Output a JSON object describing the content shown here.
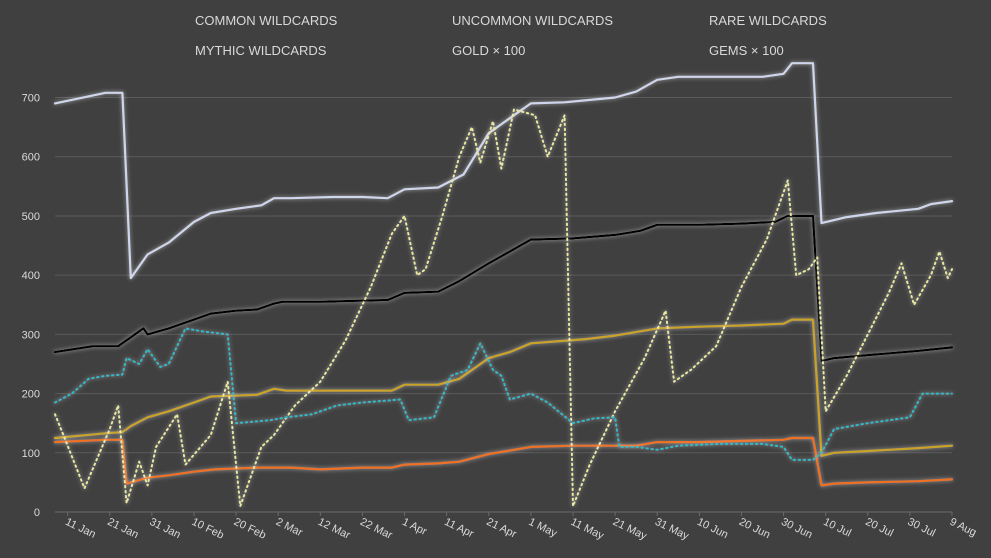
{
  "chart_data": {
    "type": "line",
    "title": "",
    "xlabel": "",
    "ylabel": "",
    "ylim": [
      0,
      760
    ],
    "grid": "horizontal",
    "legend_position": "top",
    "xlim": [
      "2019-01-08",
      "2019-08-09"
    ],
    "y_ticks": [
      0,
      100,
      200,
      300,
      400,
      500,
      600,
      700
    ],
    "x_ticks": [
      {
        "date": "2019-01-11",
        "label": "11 Jan"
      },
      {
        "date": "2019-01-21",
        "label": "21 Jan"
      },
      {
        "date": "2019-01-31",
        "label": "31 Jan"
      },
      {
        "date": "2019-02-10",
        "label": "10 Feb"
      },
      {
        "date": "2019-02-20",
        "label": "20 Feb"
      },
      {
        "date": "2019-03-02",
        "label": "2 Mar"
      },
      {
        "date": "2019-03-12",
        "label": "12 Mar"
      },
      {
        "date": "2019-03-22",
        "label": "22 Mar"
      },
      {
        "date": "2019-04-01",
        "label": "1 Apr"
      },
      {
        "date": "2019-04-11",
        "label": "11 Apr"
      },
      {
        "date": "2019-04-21",
        "label": "21 Apr"
      },
      {
        "date": "2019-05-01",
        "label": "1 May"
      },
      {
        "date": "2019-05-11",
        "label": "11 May"
      },
      {
        "date": "2019-05-21",
        "label": "21 May"
      },
      {
        "date": "2019-05-31",
        "label": "31 May"
      },
      {
        "date": "2019-06-10",
        "label": "10 Jun"
      },
      {
        "date": "2019-06-20",
        "label": "20 Jun"
      },
      {
        "date": "2019-06-30",
        "label": "30 Jun"
      },
      {
        "date": "2019-07-10",
        "label": "10 Jul"
      },
      {
        "date": "2019-07-20",
        "label": "20 Jul"
      },
      {
        "date": "2019-07-30",
        "label": "30 Jul"
      },
      {
        "date": "2019-08-09",
        "label": "9 Aug"
      }
    ],
    "series": [
      {
        "name": "COMMON WILDCARDS",
        "color": "#000000",
        "style": "solid",
        "points": [
          [
            "2019-01-08",
            270
          ],
          [
            "2019-01-17",
            280
          ],
          [
            "2019-01-23",
            280
          ],
          [
            "2019-01-26",
            295
          ],
          [
            "2019-01-29",
            310
          ],
          [
            "2019-01-30",
            300
          ],
          [
            "2019-02-04",
            310
          ],
          [
            "2019-02-10",
            325
          ],
          [
            "2019-02-14",
            335
          ],
          [
            "2019-02-20",
            340
          ],
          [
            "2019-02-25",
            342
          ],
          [
            "2019-03-01",
            352
          ],
          [
            "2019-03-03",
            355
          ],
          [
            "2019-03-12",
            355
          ],
          [
            "2019-03-22",
            357
          ],
          [
            "2019-03-28",
            358
          ],
          [
            "2019-04-01",
            370
          ],
          [
            "2019-04-09",
            372
          ],
          [
            "2019-04-14",
            390
          ],
          [
            "2019-04-21",
            420
          ],
          [
            "2019-04-26",
            440
          ],
          [
            "2019-05-01",
            460
          ],
          [
            "2019-05-11",
            462
          ],
          [
            "2019-05-21",
            468
          ],
          [
            "2019-05-27",
            475
          ],
          [
            "2019-05-31",
            485
          ],
          [
            "2019-06-10",
            485
          ],
          [
            "2019-06-20",
            487
          ],
          [
            "2019-06-28",
            490
          ],
          [
            "2019-07-01",
            500
          ],
          [
            "2019-07-07",
            500
          ],
          [
            "2019-07-09",
            255
          ],
          [
            "2019-07-12",
            260
          ],
          [
            "2019-07-20",
            265
          ],
          [
            "2019-08-01",
            272
          ],
          [
            "2019-08-09",
            278
          ]
        ]
      },
      {
        "name": "UNCOMMON WILDCARDS",
        "color": "#cfd5ea",
        "style": "solid",
        "points": [
          [
            "2019-01-08",
            690
          ],
          [
            "2019-01-20",
            708
          ],
          [
            "2019-01-24",
            708
          ],
          [
            "2019-01-26",
            395
          ],
          [
            "2019-01-30",
            435
          ],
          [
            "2019-02-04",
            455
          ],
          [
            "2019-02-10",
            490
          ],
          [
            "2019-02-14",
            505
          ],
          [
            "2019-02-20",
            512
          ],
          [
            "2019-02-26",
            518
          ],
          [
            "2019-03-01",
            530
          ],
          [
            "2019-03-05",
            530
          ],
          [
            "2019-03-15",
            532
          ],
          [
            "2019-03-22",
            532
          ],
          [
            "2019-03-28",
            530
          ],
          [
            "2019-04-01",
            545
          ],
          [
            "2019-04-09",
            548
          ],
          [
            "2019-04-15",
            570
          ],
          [
            "2019-04-21",
            640
          ],
          [
            "2019-04-25",
            660
          ],
          [
            "2019-05-01",
            690
          ],
          [
            "2019-05-09",
            692
          ],
          [
            "2019-05-21",
            700
          ],
          [
            "2019-05-26",
            710
          ],
          [
            "2019-05-31",
            730
          ],
          [
            "2019-06-05",
            735
          ],
          [
            "2019-06-15",
            735
          ],
          [
            "2019-06-25",
            735
          ],
          [
            "2019-06-30",
            740
          ],
          [
            "2019-07-02",
            758
          ],
          [
            "2019-07-07",
            758
          ],
          [
            "2019-07-09",
            488
          ],
          [
            "2019-07-15",
            498
          ],
          [
            "2019-07-22",
            505
          ],
          [
            "2019-08-01",
            512
          ],
          [
            "2019-08-04",
            520
          ],
          [
            "2019-08-09",
            525
          ]
        ]
      },
      {
        "name": "RARE WILDCARDS",
        "color": "#c9a227",
        "style": "solid",
        "points": [
          [
            "2019-01-08",
            125
          ],
          [
            "2019-01-20",
            133
          ],
          [
            "2019-01-24",
            135
          ],
          [
            "2019-01-26",
            145
          ],
          [
            "2019-01-30",
            160
          ],
          [
            "2019-02-04",
            170
          ],
          [
            "2019-02-10",
            185
          ],
          [
            "2019-02-14",
            195
          ],
          [
            "2019-02-25",
            198
          ],
          [
            "2019-03-01",
            208
          ],
          [
            "2019-03-04",
            205
          ],
          [
            "2019-03-20",
            205
          ],
          [
            "2019-03-29",
            205
          ],
          [
            "2019-04-01",
            215
          ],
          [
            "2019-04-09",
            215
          ],
          [
            "2019-04-14",
            225
          ],
          [
            "2019-04-21",
            260
          ],
          [
            "2019-04-26",
            270
          ],
          [
            "2019-05-01",
            285
          ],
          [
            "2019-05-14",
            292
          ],
          [
            "2019-05-21",
            298
          ],
          [
            "2019-05-31",
            310
          ],
          [
            "2019-06-10",
            313
          ],
          [
            "2019-06-20",
            315
          ],
          [
            "2019-06-30",
            318
          ],
          [
            "2019-07-02",
            325
          ],
          [
            "2019-07-07",
            325
          ],
          [
            "2019-07-09",
            95
          ],
          [
            "2019-07-12",
            100
          ],
          [
            "2019-07-20",
            103
          ],
          [
            "2019-08-01",
            108
          ],
          [
            "2019-08-09",
            112
          ]
        ]
      },
      {
        "name": "MYTHIC WILDCARDS",
        "color": "#f07020",
        "style": "solid",
        "points": [
          [
            "2019-01-08",
            118
          ],
          [
            "2019-01-20",
            122
          ],
          [
            "2019-01-24",
            122
          ],
          [
            "2019-01-25",
            48
          ],
          [
            "2019-01-30",
            58
          ],
          [
            "2019-02-04",
            62
          ],
          [
            "2019-02-10",
            68
          ],
          [
            "2019-02-15",
            72
          ],
          [
            "2019-02-25",
            75
          ],
          [
            "2019-03-05",
            75
          ],
          [
            "2019-03-12",
            72
          ],
          [
            "2019-03-22",
            75
          ],
          [
            "2019-03-29",
            75
          ],
          [
            "2019-04-01",
            80
          ],
          [
            "2019-04-09",
            82
          ],
          [
            "2019-04-14",
            85
          ],
          [
            "2019-04-21",
            98
          ],
          [
            "2019-04-27",
            105
          ],
          [
            "2019-05-01",
            110
          ],
          [
            "2019-05-11",
            112
          ],
          [
            "2019-05-26",
            112
          ],
          [
            "2019-05-31",
            118
          ],
          [
            "2019-06-10",
            118
          ],
          [
            "2019-06-20",
            120
          ],
          [
            "2019-06-30",
            122
          ],
          [
            "2019-07-02",
            125
          ],
          [
            "2019-07-07",
            125
          ],
          [
            "2019-07-09",
            45
          ],
          [
            "2019-07-12",
            48
          ],
          [
            "2019-07-20",
            50
          ],
          [
            "2019-08-01",
            52
          ],
          [
            "2019-08-09",
            55
          ]
        ]
      },
      {
        "name": "GOLD × 100",
        "color": "#e8e8a0",
        "style": "dotted",
        "points": [
          [
            "2019-01-08",
            165
          ],
          [
            "2019-01-10",
            130
          ],
          [
            "2019-01-15",
            40
          ],
          [
            "2019-01-21",
            140
          ],
          [
            "2019-01-23",
            180
          ],
          [
            "2019-01-25",
            15
          ],
          [
            "2019-01-28",
            85
          ],
          [
            "2019-01-30",
            45
          ],
          [
            "2019-02-01",
            110
          ],
          [
            "2019-02-06",
            165
          ],
          [
            "2019-02-08",
            80
          ],
          [
            "2019-02-14",
            130
          ],
          [
            "2019-02-18",
            220
          ],
          [
            "2019-02-21",
            10
          ],
          [
            "2019-02-26",
            110
          ],
          [
            "2019-03-01",
            130
          ],
          [
            "2019-03-06",
            180
          ],
          [
            "2019-03-12",
            220
          ],
          [
            "2019-03-18",
            290
          ],
          [
            "2019-03-24",
            380
          ],
          [
            "2019-03-29",
            470
          ],
          [
            "2019-04-01",
            500
          ],
          [
            "2019-04-04",
            400
          ],
          [
            "2019-04-06",
            410
          ],
          [
            "2019-04-10",
            500
          ],
          [
            "2019-04-14",
            600
          ],
          [
            "2019-04-17",
            650
          ],
          [
            "2019-04-19",
            590
          ],
          [
            "2019-04-22",
            660
          ],
          [
            "2019-04-24",
            580
          ],
          [
            "2019-04-27",
            680
          ],
          [
            "2019-05-02",
            670
          ],
          [
            "2019-05-05",
            600
          ],
          [
            "2019-05-09",
            670
          ],
          [
            "2019-05-11",
            10
          ],
          [
            "2019-05-15",
            80
          ],
          [
            "2019-05-21",
            170
          ],
          [
            "2019-05-28",
            260
          ],
          [
            "2019-06-02",
            340
          ],
          [
            "2019-06-04",
            220
          ],
          [
            "2019-06-08",
            240
          ],
          [
            "2019-06-14",
            280
          ],
          [
            "2019-06-20",
            380
          ],
          [
            "2019-06-26",
            460
          ],
          [
            "2019-07-01",
            560
          ],
          [
            "2019-07-03",
            400
          ],
          [
            "2019-07-06",
            410
          ],
          [
            "2019-07-08",
            430
          ],
          [
            "2019-07-10",
            170
          ],
          [
            "2019-07-15",
            230
          ],
          [
            "2019-07-20",
            300
          ],
          [
            "2019-07-25",
            370
          ],
          [
            "2019-07-28",
            420
          ],
          [
            "2019-07-31",
            350
          ],
          [
            "2019-08-04",
            400
          ],
          [
            "2019-08-06",
            440
          ],
          [
            "2019-08-08",
            395
          ],
          [
            "2019-08-09",
            410
          ]
        ]
      },
      {
        "name": "GEMS × 100",
        "color": "#2fb8c8",
        "style": "dotted",
        "points": [
          [
            "2019-01-08",
            185
          ],
          [
            "2019-01-12",
            200
          ],
          [
            "2019-01-16",
            225
          ],
          [
            "2019-01-20",
            230
          ],
          [
            "2019-01-24",
            232
          ],
          [
            "2019-01-25",
            260
          ],
          [
            "2019-01-28",
            250
          ],
          [
            "2019-01-30",
            275
          ],
          [
            "2019-02-02",
            245
          ],
          [
            "2019-02-04",
            250
          ],
          [
            "2019-02-08",
            310
          ],
          [
            "2019-02-12",
            305
          ],
          [
            "2019-02-18",
            300
          ],
          [
            "2019-02-20",
            150
          ],
          [
            "2019-02-28",
            155
          ],
          [
            "2019-03-04",
            160
          ],
          [
            "2019-03-10",
            165
          ],
          [
            "2019-03-16",
            180
          ],
          [
            "2019-03-22",
            185
          ],
          [
            "2019-03-31",
            190
          ],
          [
            "2019-04-02",
            155
          ],
          [
            "2019-04-08",
            160
          ],
          [
            "2019-04-12",
            230
          ],
          [
            "2019-04-16",
            240
          ],
          [
            "2019-04-19",
            285
          ],
          [
            "2019-04-22",
            240
          ],
          [
            "2019-04-24",
            230
          ],
          [
            "2019-04-26",
            190
          ],
          [
            "2019-05-01",
            200
          ],
          [
            "2019-05-05",
            185
          ],
          [
            "2019-05-11",
            150
          ],
          [
            "2019-05-16",
            158
          ],
          [
            "2019-05-21",
            160
          ],
          [
            "2019-05-22",
            110
          ],
          [
            "2019-05-26",
            110
          ],
          [
            "2019-05-31",
            105
          ],
          [
            "2019-06-05",
            112
          ],
          [
            "2019-06-15",
            115
          ],
          [
            "2019-06-25",
            115
          ],
          [
            "2019-06-30",
            110
          ],
          [
            "2019-07-02",
            88
          ],
          [
            "2019-07-07",
            88
          ],
          [
            "2019-07-09",
            100
          ],
          [
            "2019-07-12",
            140
          ],
          [
            "2019-07-20",
            150
          ],
          [
            "2019-07-30",
            160
          ],
          [
            "2019-08-02",
            200
          ],
          [
            "2019-08-09",
            200
          ]
        ]
      }
    ]
  }
}
